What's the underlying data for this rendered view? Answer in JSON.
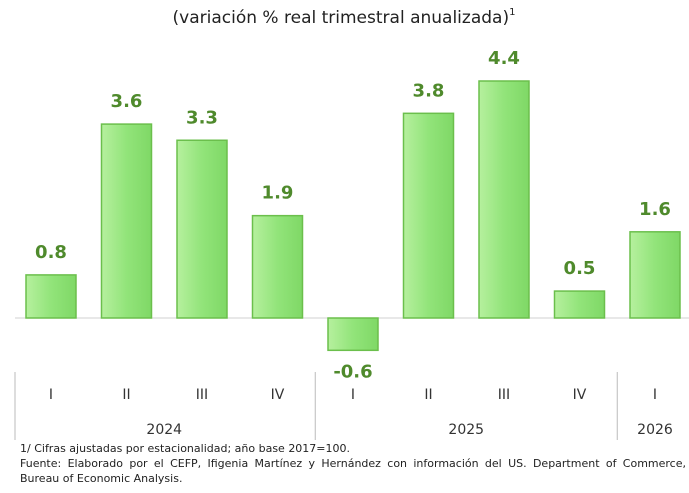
{
  "chart_data": {
    "type": "bar",
    "title": "(variación % real trimestral anualizada)",
    "title_superscript": "1",
    "color": "#92e47a",
    "groups": [
      {
        "name": "2024",
        "categories": [
          "I",
          "II",
          "III",
          "IV"
        ],
        "values": [
          0.8,
          3.6,
          3.3,
          1.9
        ]
      },
      {
        "name": "2025",
        "categories": [
          "I",
          "II",
          "III",
          "IV"
        ],
        "values": [
          -0.6,
          3.8,
          4.4,
          0.5
        ]
      },
      {
        "name": "2026",
        "categories": [
          "I"
        ],
        "values": [
          1.6
        ]
      }
    ],
    "notes": [
      "1/ Cifras ajustadas por estacionalidad; año base 2017=100.",
      "Fuente: Elaborado por el CEFP, Ifigenia Martínez y Hernández con información del US. Department of Commerce, Bureau of Economic Analysis."
    ]
  }
}
